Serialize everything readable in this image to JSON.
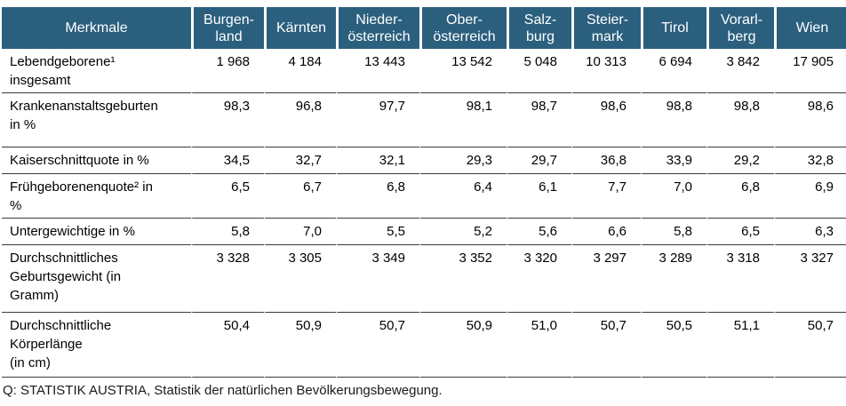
{
  "table": {
    "title_column_header": "Merkmale",
    "columns": [
      {
        "label": "Merkmale"
      },
      {
        "label": "Burgen-\nland"
      },
      {
        "label": "Kärnten"
      },
      {
        "label": "Nieder-\nösterreich"
      },
      {
        "label": "Ober-\nösterreich"
      },
      {
        "label": "Salz-\nburg"
      },
      {
        "label": "Steier-\nmark"
      },
      {
        "label": "Tirol"
      },
      {
        "label": "Vorarl-\nberg"
      },
      {
        "label": "Wien"
      }
    ],
    "rows": [
      {
        "label": "Lebendgeborene¹\ninsgesamt",
        "values": [
          "1 968",
          "4 184",
          "13 443",
          "13 542",
          "5 048",
          "10 313",
          "6 694",
          "3 842",
          "17 905"
        ]
      },
      {
        "label": "Krankenanstaltsgeburten\nin %",
        "values": [
          "98,3",
          "96,8",
          "97,7",
          "98,1",
          "98,7",
          "98,6",
          "98,8",
          "98,8",
          "98,6"
        ]
      },
      {
        "label": "Kaiserschnittquote in %",
        "values": [
          "34,5",
          "32,7",
          "32,1",
          "29,3",
          "29,7",
          "36,8",
          "33,9",
          "29,2",
          "32,8"
        ]
      },
      {
        "label": "Frühgeborenenquote² in\n%",
        "values": [
          "6,5",
          "6,7",
          "6,8",
          "6,4",
          "6,1",
          "7,7",
          "7,0",
          "6,8",
          "6,9"
        ]
      },
      {
        "label": "Untergewichtige in %",
        "values": [
          "5,8",
          "7,0",
          "5,5",
          "5,2",
          "5,6",
          "6,6",
          "5,8",
          "6,5",
          "6,3"
        ]
      },
      {
        "label": "Durchschnittliches\nGeburtsgewicht (in\nGramm)",
        "values": [
          "3 328",
          "3 305",
          "3 349",
          "3 352",
          "3 320",
          "3 297",
          "3 289",
          "3 318",
          "3 327"
        ]
      },
      {
        "label": "Durchschnittliche\nKörperlänge\n(in cm)",
        "values": [
          "50,4",
          "50,9",
          "50,7",
          "50,9",
          "51,0",
          "50,7",
          "50,5",
          "51,1",
          "50,7"
        ]
      }
    ]
  },
  "footer": {
    "source": "Q: STATISTIK AUSTRIA, Statistik der natürlichen Bevölkerungsbewegung."
  },
  "colors": {
    "header_background": "#2B5F7E",
    "header_text": "#FFFFFF",
    "row_separator": "#3A3A3A",
    "body_text": "#000000"
  }
}
